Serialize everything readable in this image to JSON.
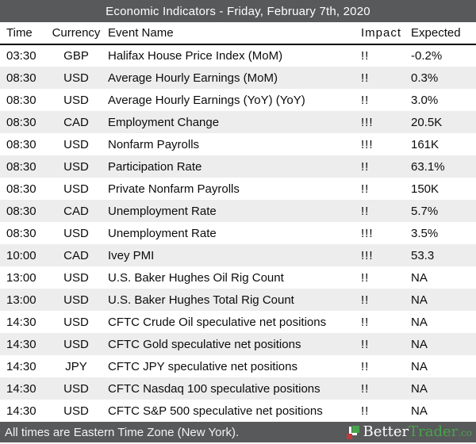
{
  "title_bar": {
    "title": "Economic Indicators - Friday, February 7th, 2020"
  },
  "table": {
    "columns": [
      "Time",
      "Currency",
      "Event Name",
      "Impact",
      "Expected"
    ],
    "rows": [
      {
        "time": "03:30",
        "currency": "GBP",
        "event": "Halifax House Price Index (MoM)",
        "impact": "!!",
        "expected": "-0.2%"
      },
      {
        "time": "08:30",
        "currency": "USD",
        "event": "Average Hourly Earnings (MoM)",
        "impact": "!!",
        "expected": "0.3%"
      },
      {
        "time": "08:30",
        "currency": "USD",
        "event": "Average Hourly Earnings (YoY) (YoY)",
        "impact": "!!",
        "expected": "3.0%"
      },
      {
        "time": "08:30",
        "currency": "CAD",
        "event": "Employment Change",
        "impact": "!!!",
        "expected": "20.5K"
      },
      {
        "time": "08:30",
        "currency": "USD",
        "event": "Nonfarm Payrolls",
        "impact": "!!!",
        "expected": "161K"
      },
      {
        "time": "08:30",
        "currency": "USD",
        "event": "Participation Rate",
        "impact": "!!",
        "expected": "63.1%"
      },
      {
        "time": "08:30",
        "currency": "USD",
        "event": "Private Nonfarm Payrolls",
        "impact": "!!",
        "expected": "150K"
      },
      {
        "time": "08:30",
        "currency": "CAD",
        "event": "Unemployment Rate",
        "impact": "!!",
        "expected": "5.7%"
      },
      {
        "time": "08:30",
        "currency": "USD",
        "event": "Unemployment Rate",
        "impact": "!!!",
        "expected": "3.5%"
      },
      {
        "time": "10:00",
        "currency": "CAD",
        "event": "Ivey PMI",
        "impact": "!!!",
        "expected": "53.3"
      },
      {
        "time": "13:00",
        "currency": "USD",
        "event": "U.S. Baker Hughes Oil Rig Count",
        "impact": "!!",
        "expected": "NA"
      },
      {
        "time": "13:00",
        "currency": "USD",
        "event": "U.S. Baker Hughes Total Rig Count",
        "impact": "!!",
        "expected": "NA"
      },
      {
        "time": "14:30",
        "currency": "USD",
        "event": "CFTC Crude Oil speculative net positions",
        "impact": "!!",
        "expected": "NA"
      },
      {
        "time": "14:30",
        "currency": "USD",
        "event": "CFTC Gold speculative net positions",
        "impact": "!!",
        "expected": "NA"
      },
      {
        "time": "14:30",
        "currency": "JPY",
        "event": "CFTC JPY speculative net positions",
        "impact": "!!",
        "expected": "NA"
      },
      {
        "time": "14:30",
        "currency": "USD",
        "event": "CFTC Nasdaq 100 speculative positions",
        "impact": "!!",
        "expected": "NA"
      },
      {
        "time": "14:30",
        "currency": "USD",
        "event": "CFTC S&P 500 speculative net positions",
        "impact": "!!",
        "expected": "NA"
      }
    ]
  },
  "footer": {
    "note": "All times are Eastern Time Zone (New York).",
    "brand": {
      "part1": "Better",
      "part2": "Trader",
      "suffix": ".co"
    },
    "logo_icon": "bettertrader-logo-icon"
  },
  "colors": {
    "bar_background": "#58595b",
    "row_stripe": "#ededed",
    "brand_green": "#47a54b",
    "brand_red": "#bf3a3a",
    "header_rule": "#000000"
  }
}
